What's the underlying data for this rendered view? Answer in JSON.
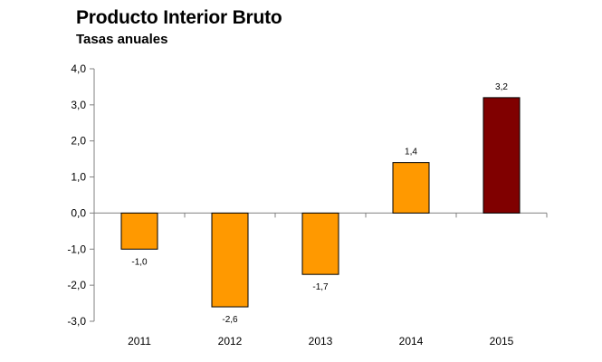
{
  "chart_data": {
    "type": "bar",
    "title": "Producto Interior Bruto",
    "subtitle": "Tasas anuales",
    "categories": [
      "2011",
      "2012",
      "2013",
      "2014",
      "2015"
    ],
    "values": [
      -1.0,
      -2.6,
      -1.7,
      1.4,
      3.2
    ],
    "data_labels": [
      "-1,0",
      "-2,6",
      "-1,7",
      "1,4",
      "3,2"
    ],
    "ylim": [
      -3.0,
      4.0
    ],
    "y_ticks": [
      4.0,
      3.0,
      2.0,
      1.0,
      0.0,
      -1.0,
      -2.0,
      -3.0
    ],
    "y_tick_labels": [
      "4,0",
      "3,0",
      "2,0",
      "1,0",
      "0,0",
      "-1,0",
      "-2,0",
      "-3,0"
    ],
    "grid": false,
    "legend": "none",
    "colors": {
      "bar": "#FF9900",
      "highlight_bar": "#800000",
      "axis": "#808080"
    },
    "highlight_category": "2015"
  }
}
